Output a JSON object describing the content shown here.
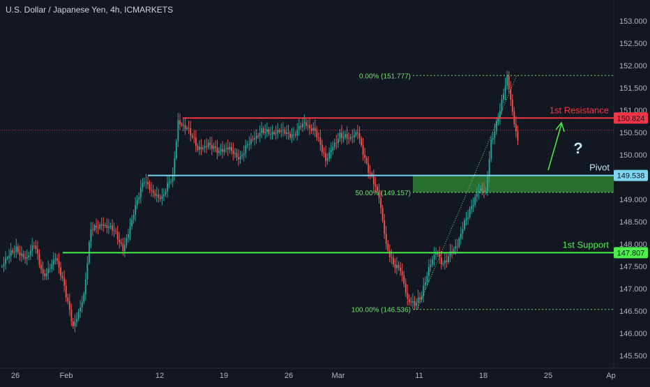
{
  "header": {
    "symbol": "U.S. Dollar / Japanese Yen, 4h, ICMARKETS"
  },
  "colors": {
    "background": "#131722",
    "up": "#26a69a",
    "down": "#ef5350",
    "resistance": "#f23645",
    "pivot": "#7fd6f0",
    "support": "#4cf04c",
    "fib": "#6ee36e",
    "zone": "#2e7d32",
    "axis_text": "#b2b5be",
    "annotation_text": "#dfe3ea",
    "price_line": "#ef5350"
  },
  "chart_data": {
    "type": "candlestick",
    "title": "U.S. Dollar / Japanese Yen, 4h, ICMARKETS",
    "x_ticks": [
      "26",
      "Feb",
      "12",
      "19",
      "26",
      "Mar",
      "11",
      "18",
      "25",
      "Ap"
    ],
    "y_ticks": [
      "153.000",
      "152.500",
      "152.000",
      "151.500",
      "151.000",
      "150.500",
      "150.000",
      "149.500",
      "149.000",
      "148.500",
      "148.000",
      "147.500",
      "147.000",
      "146.500",
      "146.000",
      "145.500"
    ],
    "ylim": [
      145.4,
      153.2
    ],
    "grid": false,
    "price_path": [
      {
        "bar": 0,
        "price": 147.5
      },
      {
        "bar": 8,
        "price": 147.9
      },
      {
        "bar": 14,
        "price": 147.7
      },
      {
        "bar": 18,
        "price": 147.95
      },
      {
        "bar": 23,
        "price": 147.3
      },
      {
        "bar": 30,
        "price": 147.7
      },
      {
        "bar": 35,
        "price": 147.0
      },
      {
        "bar": 40,
        "price": 146.2
      },
      {
        "bar": 46,
        "price": 146.8
      },
      {
        "bar": 50,
        "price": 148.3
      },
      {
        "bar": 56,
        "price": 148.5
      },
      {
        "bar": 62,
        "price": 148.3
      },
      {
        "bar": 68,
        "price": 147.9
      },
      {
        "bar": 74,
        "price": 148.7
      },
      {
        "bar": 80,
        "price": 149.4
      },
      {
        "bar": 85,
        "price": 149.2
      },
      {
        "bar": 90,
        "price": 149.0
      },
      {
        "bar": 96,
        "price": 149.5
      },
      {
        "bar": 99,
        "price": 150.8
      },
      {
        "bar": 104,
        "price": 150.6
      },
      {
        "bar": 110,
        "price": 150.1
      },
      {
        "bar": 116,
        "price": 150.3
      },
      {
        "bar": 122,
        "price": 150.0
      },
      {
        "bar": 128,
        "price": 150.2
      },
      {
        "bar": 134,
        "price": 149.9
      },
      {
        "bar": 140,
        "price": 150.3
      },
      {
        "bar": 146,
        "price": 150.6
      },
      {
        "bar": 152,
        "price": 150.4
      },
      {
        "bar": 158,
        "price": 150.6
      },
      {
        "bar": 164,
        "price": 150.4
      },
      {
        "bar": 170,
        "price": 150.7
      },
      {
        "bar": 176,
        "price": 150.6
      },
      {
        "bar": 182,
        "price": 149.8
      },
      {
        "bar": 186,
        "price": 150.2
      },
      {
        "bar": 190,
        "price": 150.5
      },
      {
        "bar": 196,
        "price": 150.3
      },
      {
        "bar": 200,
        "price": 150.5
      },
      {
        "bar": 206,
        "price": 149.7
      },
      {
        "bar": 212,
        "price": 149.0
      },
      {
        "bar": 216,
        "price": 148.0
      },
      {
        "bar": 220,
        "price": 147.6
      },
      {
        "bar": 224,
        "price": 147.4
      },
      {
        "bar": 228,
        "price": 146.7
      },
      {
        "bar": 232,
        "price": 146.7
      },
      {
        "bar": 236,
        "price": 146.9
      },
      {
        "bar": 240,
        "price": 147.4
      },
      {
        "bar": 244,
        "price": 147.8
      },
      {
        "bar": 248,
        "price": 147.6
      },
      {
        "bar": 252,
        "price": 147.8
      },
      {
        "bar": 256,
        "price": 147.9
      },
      {
        "bar": 260,
        "price": 148.5
      },
      {
        "bar": 264,
        "price": 148.9
      },
      {
        "bar": 268,
        "price": 149.2
      },
      {
        "bar": 272,
        "price": 149.1
      },
      {
        "bar": 275,
        "price": 150.3
      },
      {
        "bar": 279,
        "price": 150.9
      },
      {
        "bar": 284,
        "price": 151.7
      },
      {
        "bar": 287,
        "price": 150.9
      },
      {
        "bar": 290,
        "price": 150.3
      }
    ],
    "levels": [
      {
        "name": "1st Resistance",
        "price": 150.824,
        "label": "150.824"
      },
      {
        "name": "Pivot",
        "price": 149.538,
        "label": "149.538"
      },
      {
        "name": "1st Support",
        "price": 147.807,
        "label": "147.807"
      }
    ],
    "fibonacci": [
      {
        "label": "0.00% (151.777)",
        "price": 151.777
      },
      {
        "label": "50.00% (149.157)",
        "price": 149.157
      },
      {
        "label": "100.00% (146.536)",
        "price": 146.536
      }
    ],
    "zone": {
      "top": 149.538,
      "bottom": 149.157
    },
    "current_price": 150.55,
    "question_mark": "?"
  }
}
